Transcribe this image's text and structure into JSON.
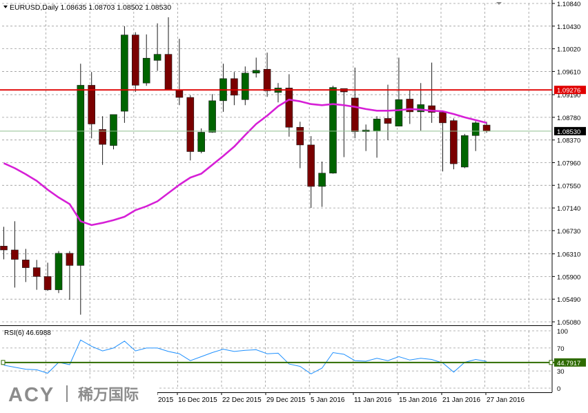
{
  "header": {
    "title": "EURUSD,Daily  1.08635 1.08703 1.08502 1.08530"
  },
  "watermark": {
    "brand": "ACY",
    "chinese": "稀万国际"
  },
  "colors": {
    "bull": "#006400",
    "bear": "#7a0000",
    "ma": "#d61fd6",
    "resistance": "#e00000",
    "current": "#2e7d32",
    "rsi_line": "#1e90ff",
    "rsi_level": "#2e6b00",
    "grid": "#9a9a9a",
    "axis_text": "#000000"
  },
  "chart_data": [
    {
      "type": "candlestick",
      "name": "EURUSD,Daily",
      "ohlc_last": {
        "open": "1.08635",
        "high": "1.08703",
        "low": "1.08502",
        "close": "1.08530"
      },
      "yaxis": {
        "ticks": [
          "1.10840",
          "1.10430",
          "1.10020",
          "1.09610",
          "1.09190",
          "1.08780",
          "1.08370",
          "1.07960",
          "1.07550",
          "1.07140",
          "1.06730",
          "1.06310",
          "1.05900",
          "1.05490",
          "1.05080"
        ],
        "ylim": [
          1.0508,
          1.1084
        ]
      },
      "xaxis": {
        "ticks": [
          "2015",
          "16 Dec 2015",
          "22 Dec 2015",
          "29 Dec 2015",
          "5 Jan 2016",
          "11 Jan 2016",
          "15 Jan 2016",
          "21 Jan 2016",
          "27 Jan 2016"
        ]
      },
      "candles": [
        {
          "o": 1.0645,
          "h": 1.068,
          "l": 1.0621,
          "c": 1.0638
        },
        {
          "o": 1.0638,
          "h": 1.069,
          "l": 1.057,
          "c": 1.0621
        },
        {
          "o": 1.062,
          "h": 1.064,
          "l": 1.058,
          "c": 1.0606
        },
        {
          "o": 1.0606,
          "h": 1.062,
          "l": 1.0566,
          "c": 1.059
        },
        {
          "o": 1.059,
          "h": 1.0615,
          "l": 1.0564,
          "c": 1.0566
        },
        {
          "o": 1.0566,
          "h": 1.0636,
          "l": 1.056,
          "c": 1.0632
        },
        {
          "o": 1.0632,
          "h": 1.0636,
          "l": 1.0548,
          "c": 1.061
        },
        {
          "o": 1.061,
          "h": 1.0975,
          "l": 1.0521,
          "c": 1.0936
        },
        {
          "o": 1.0936,
          "h": 1.096,
          "l": 1.084,
          "c": 1.0866
        },
        {
          "o": 1.0856,
          "h": 1.088,
          "l": 1.0792,
          "c": 1.0829
        },
        {
          "o": 1.0827,
          "h": 1.088,
          "l": 1.082,
          "c": 1.0883
        },
        {
          "o": 1.0889,
          "h": 1.1043,
          "l": 1.0868,
          "c": 1.1027
        },
        {
          "o": 1.1027,
          "h": 1.1032,
          "l": 1.0924,
          "c": 1.0936
        },
        {
          "o": 1.094,
          "h": 1.1028,
          "l": 1.0935,
          "c": 1.0985
        },
        {
          "o": 1.0981,
          "h": 1.1048,
          "l": 1.0962,
          "c": 1.0992
        },
        {
          "o": 1.0992,
          "h": 1.1059,
          "l": 1.093,
          "c": 1.0928
        },
        {
          "o": 1.0928,
          "h": 1.102,
          "l": 1.09,
          "c": 1.0914
        },
        {
          "o": 1.0914,
          "h": 1.0918,
          "l": 1.08,
          "c": 1.0816
        },
        {
          "o": 1.0816,
          "h": 1.0858,
          "l": 1.0813,
          "c": 1.0851
        },
        {
          "o": 1.0851,
          "h": 1.092,
          "l": 1.085,
          "c": 1.0908
        },
        {
          "o": 1.0908,
          "h": 1.0975,
          "l": 1.0888,
          "c": 1.0948
        },
        {
          "o": 1.0948,
          "h": 1.096,
          "l": 1.09,
          "c": 1.0918
        },
        {
          "o": 1.091,
          "h": 1.097,
          "l": 1.09,
          "c": 1.0958
        },
        {
          "o": 1.0958,
          "h": 1.0986,
          "l": 1.095,
          "c": 1.0963
        },
        {
          "o": 1.0965,
          "h": 1.0995,
          "l": 1.0915,
          "c": 1.0926
        },
        {
          "o": 1.0923,
          "h": 1.094,
          "l": 1.0905,
          "c": 1.0931
        },
        {
          "o": 1.0931,
          "h": 1.0956,
          "l": 1.0843,
          "c": 1.086
        },
        {
          "o": 1.086,
          "h": 1.087,
          "l": 1.0786,
          "c": 1.0828
        },
        {
          "o": 1.0828,
          "h": 1.0844,
          "l": 1.0714,
          "c": 1.0753
        },
        {
          "o": 1.0753,
          "h": 1.0798,
          "l": 1.0716,
          "c": 1.0777
        },
        {
          "o": 1.0777,
          "h": 1.0935,
          "l": 1.0776,
          "c": 1.0932
        },
        {
          "o": 1.093,
          "h": 1.0929,
          "l": 1.0806,
          "c": 1.0924
        },
        {
          "o": 1.0913,
          "h": 1.0968,
          "l": 1.084,
          "c": 1.0852
        },
        {
          "o": 1.0852,
          "h": 1.0865,
          "l": 1.0817,
          "c": 1.0855
        },
        {
          "o": 1.0853,
          "h": 1.088,
          "l": 1.0805,
          "c": 1.0875
        },
        {
          "o": 1.0876,
          "h": 1.0937,
          "l": 1.0837,
          "c": 1.0867
        },
        {
          "o": 1.0862,
          "h": 1.0986,
          "l": 1.0862,
          "c": 1.091
        },
        {
          "o": 1.0911,
          "h": 1.0927,
          "l": 1.0866,
          "c": 1.0888
        },
        {
          "o": 1.0888,
          "h": 1.094,
          "l": 1.0854,
          "c": 1.0901
        },
        {
          "o": 1.0899,
          "h": 1.0977,
          "l": 1.0868,
          "c": 1.0887
        },
        {
          "o": 1.0887,
          "h": 1.089,
          "l": 1.078,
          "c": 1.0868
        },
        {
          "o": 1.0872,
          "h": 1.0876,
          "l": 1.0784,
          "c": 1.0794
        },
        {
          "o": 1.0788,
          "h": 1.0848,
          "l": 1.0786,
          "c": 1.0845
        },
        {
          "o": 1.0845,
          "h": 1.0871,
          "l": 1.0817,
          "c": 1.0868
        },
        {
          "o": 1.0864,
          "h": 1.087,
          "l": 1.085,
          "c": 1.0853
        }
      ],
      "ma": [
        1.0795,
        1.0786,
        1.0775,
        1.0763,
        1.0747,
        1.0733,
        1.0721,
        1.069,
        1.0683,
        1.0687,
        1.0692,
        1.0698,
        1.071,
        1.0717,
        1.0726,
        1.0741,
        1.0756,
        1.0769,
        1.0776,
        1.0792,
        1.0808,
        1.0825,
        1.0846,
        1.0866,
        1.0881,
        1.0898,
        1.091,
        1.0907,
        1.0902,
        1.09,
        1.0902,
        1.09,
        1.0897,
        1.0893,
        1.089,
        1.089,
        1.0891,
        1.0893,
        1.0892,
        1.089,
        1.0889,
        1.0884,
        1.0878,
        1.0873,
        1.0868
      ],
      "levels": [
        {
          "name": "resistance",
          "value": 1.09276,
          "label": "1.09276"
        },
        {
          "name": "current",
          "value": 1.0853,
          "label": "1.08530"
        }
      ]
    },
    {
      "type": "line",
      "name": "RSI(6) 46.6988",
      "label": "RSI(6) 46.6988",
      "yaxis": {
        "ticks": [
          "100",
          "70",
          "30",
          "0"
        ],
        "ylim": [
          0,
          100
        ]
      },
      "level": {
        "value": 44.7917,
        "label": "44.7917"
      },
      "values": [
        40.0,
        36.5,
        33.0,
        32.0,
        26.0,
        45.0,
        41.0,
        84.0,
        73.0,
        65.0,
        70.0,
        82.0,
        65.0,
        70.0,
        70.0,
        64.0,
        60.0,
        48.0,
        55.0,
        62.0,
        68.0,
        64.0,
        66.0,
        67.0,
        60.0,
        61.0,
        42.0,
        38.0,
        25.0,
        35.0,
        62.0,
        59.0,
        48.0,
        47.0,
        52.0,
        48.0,
        55.0,
        49.0,
        52.0,
        50.0,
        44.0,
        28.0,
        45.0,
        50.0,
        46.7
      ]
    }
  ]
}
